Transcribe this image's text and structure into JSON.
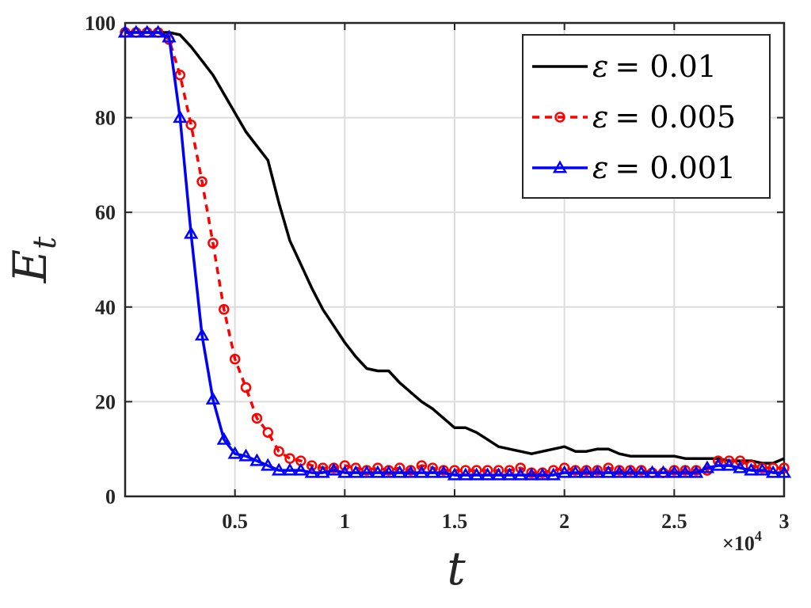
{
  "chart_data": {
    "type": "line",
    "title": "",
    "xlabel": "t",
    "ylabel": "E",
    "ylabel_subscript": "t",
    "x_multiplier_label": "×10",
    "x_multiplier_exp": "4",
    "xlim": [
      0,
      3
    ],
    "ylim": [
      0,
      100
    ],
    "xticks": [
      0.5,
      1,
      1.5,
      2,
      2.5,
      3
    ],
    "xtick_labels": [
      "0.5",
      "1",
      "1.5",
      "2",
      "2.5",
      "3"
    ],
    "yticks": [
      0,
      20,
      40,
      60,
      80,
      100
    ],
    "ytick_labels": [
      "0",
      "20",
      "40",
      "60",
      "80",
      "100"
    ],
    "grid": true,
    "legend_position": "top-right",
    "series": [
      {
        "name": "ε = 0.01",
        "legend_symbol": "ε",
        "legend_value": "= 0.01",
        "color": "#000000",
        "style": "solid",
        "marker": "none",
        "x": [
          0,
          0.05,
          0.1,
          0.15,
          0.2,
          0.25,
          0.3,
          0.35,
          0.4,
          0.45,
          0.5,
          0.55,
          0.6,
          0.65,
          0.7,
          0.75,
          0.8,
          0.85,
          0.9,
          0.95,
          1.0,
          1.05,
          1.1,
          1.15,
          1.2,
          1.25,
          1.3,
          1.35,
          1.4,
          1.45,
          1.5,
          1.55,
          1.6,
          1.65,
          1.7,
          1.75,
          1.8,
          1.85,
          1.9,
          1.95,
          2.0,
          2.05,
          2.1,
          2.15,
          2.2,
          2.25,
          2.3,
          2.35,
          2.4,
          2.45,
          2.5,
          2.55,
          2.6,
          2.65,
          2.7,
          2.75,
          2.8,
          2.85,
          2.9,
          2.95,
          3.0
        ],
        "values": [
          98,
          98,
          98,
          98,
          98,
          97.5,
          95,
          92,
          89,
          85,
          81,
          77,
          74,
          71,
          62,
          54,
          49,
          44,
          39.5,
          36,
          32.5,
          29.5,
          27,
          26.5,
          26.5,
          24,
          22,
          20,
          18.5,
          16.5,
          14.5,
          14.5,
          13.5,
          12,
          10.5,
          10,
          9.5,
          9,
          9.5,
          10,
          10.5,
          9.5,
          9.5,
          10,
          10,
          9,
          8.5,
          8.5,
          8.5,
          8.5,
          8.5,
          8,
          8,
          8,
          8,
          7.5,
          7.5,
          7.5,
          7,
          7,
          8
        ]
      },
      {
        "name": "ε = 0.005",
        "legend_symbol": "ε",
        "legend_value": "= 0.005",
        "color": "#ff0000",
        "style": "dashed",
        "marker": "circle",
        "x": [
          0,
          0.05,
          0.1,
          0.15,
          0.2,
          0.25,
          0.3,
          0.35,
          0.4,
          0.45,
          0.5,
          0.55,
          0.6,
          0.65,
          0.7,
          0.75,
          0.8,
          0.85,
          0.9,
          0.95,
          1.0,
          1.05,
          1.1,
          1.15,
          1.2,
          1.25,
          1.3,
          1.35,
          1.4,
          1.45,
          1.5,
          1.55,
          1.6,
          1.65,
          1.7,
          1.75,
          1.8,
          1.85,
          1.9,
          1.95,
          2.0,
          2.05,
          2.1,
          2.15,
          2.2,
          2.25,
          2.3,
          2.35,
          2.4,
          2.45,
          2.5,
          2.55,
          2.6,
          2.65,
          2.7,
          2.75,
          2.8,
          2.85,
          2.9,
          2.95,
          3.0
        ],
        "values": [
          98,
          98,
          98,
          98,
          96.5,
          89,
          78.5,
          66.5,
          53.5,
          39.5,
          29,
          23,
          16.5,
          13.5,
          9.5,
          8,
          7.5,
          6.5,
          6,
          6,
          6.5,
          6,
          5.5,
          6,
          5.5,
          6,
          5.5,
          6.5,
          6,
          5.5,
          5.5,
          5.5,
          5.5,
          5.5,
          5.5,
          5.5,
          6,
          5,
          5,
          5.5,
          6,
          5.5,
          5.5,
          5.5,
          6,
          5.5,
          5.5,
          5.5,
          5,
          5,
          5.5,
          5.5,
          5.5,
          5.5,
          7.5,
          7.5,
          7.5,
          6.5,
          6,
          6,
          6
        ]
      },
      {
        "name": "ε = 0.001",
        "legend_symbol": "ε",
        "legend_value": "= 0.001",
        "color": "#0000ff",
        "style": "solid",
        "marker": "triangle",
        "x": [
          0,
          0.05,
          0.1,
          0.15,
          0.2,
          0.25,
          0.3,
          0.35,
          0.4,
          0.45,
          0.5,
          0.55,
          0.6,
          0.65,
          0.7,
          0.75,
          0.8,
          0.85,
          0.9,
          0.95,
          1.0,
          1.05,
          1.1,
          1.15,
          1.2,
          1.25,
          1.3,
          1.35,
          1.4,
          1.45,
          1.5,
          1.55,
          1.6,
          1.65,
          1.7,
          1.75,
          1.8,
          1.85,
          1.9,
          1.95,
          2.0,
          2.05,
          2.1,
          2.15,
          2.2,
          2.25,
          2.3,
          2.35,
          2.4,
          2.45,
          2.5,
          2.55,
          2.6,
          2.65,
          2.7,
          2.75,
          2.8,
          2.85,
          2.9,
          2.95,
          3.0
        ],
        "values": [
          98,
          98,
          98,
          98,
          97,
          80,
          55.5,
          34,
          20.5,
          12,
          9,
          8.5,
          7.5,
          6.5,
          5.5,
          5.5,
          5.5,
          5,
          5,
          5.5,
          5,
          5,
          5,
          5,
          5,
          5,
          5,
          5,
          5,
          5,
          4.5,
          4.5,
          4.5,
          4.5,
          4.5,
          4.5,
          4.5,
          4.5,
          4.5,
          4.5,
          5,
          5,
          5,
          5,
          5,
          5,
          5,
          5,
          5,
          5,
          5,
          5,
          5,
          6,
          6.5,
          6.5,
          6,
          5.5,
          5.5,
          5,
          5
        ]
      }
    ]
  }
}
